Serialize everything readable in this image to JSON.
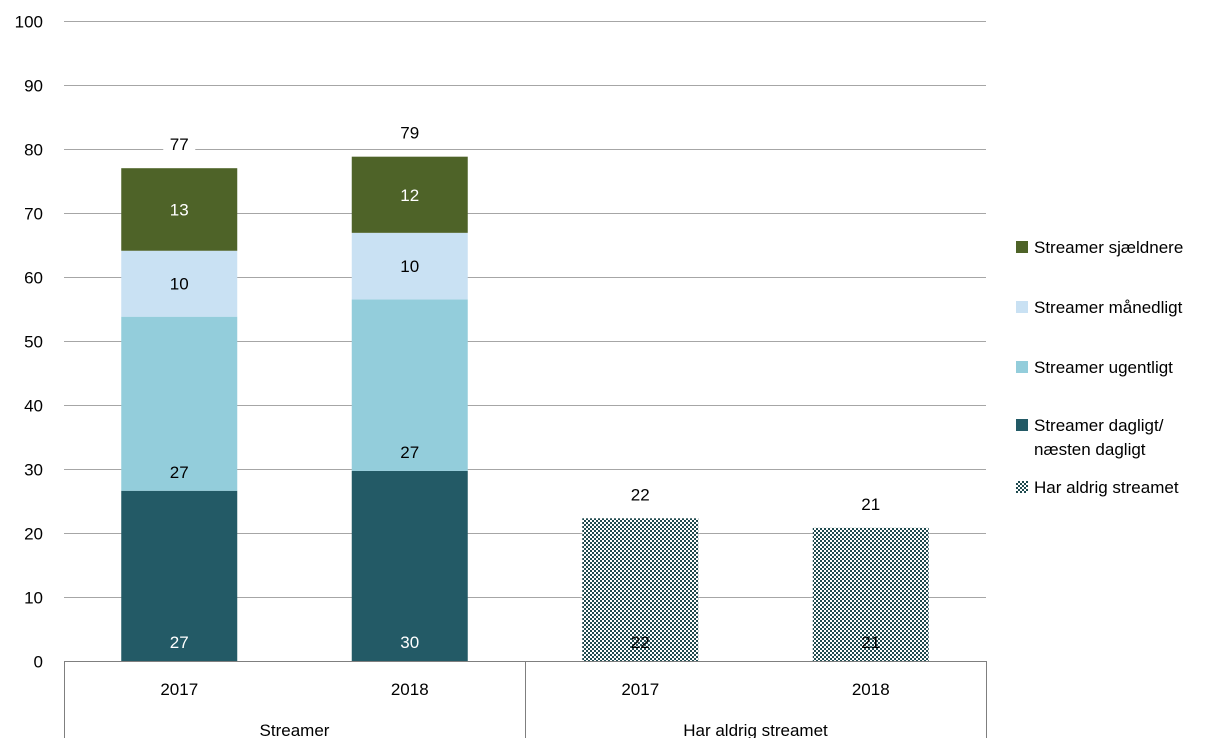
{
  "chart_data": {
    "type": "bar",
    "stacked": true,
    "y_axis": {
      "min": 0,
      "max": 100,
      "ticks": [
        "0",
        "10",
        "20",
        "30",
        "40",
        "50",
        "60",
        "70",
        "80",
        "90",
        "100"
      ]
    },
    "grid": true,
    "groups": [
      {
        "label": "Streamer",
        "categories": [
          "2017",
          "2018"
        ]
      },
      {
        "label": "Har aldrig streamet",
        "categories": [
          "2017",
          "2018"
        ]
      }
    ],
    "categories": [
      "2017",
      "2018",
      "2017",
      "2018"
    ],
    "series": [
      {
        "name": "Streamer dagligt/ næsten dagligt",
        "color": "#235A66",
        "values": [
          26.6,
          29.7,
          null,
          null
        ],
        "labels": [
          "27",
          "30",
          "",
          ""
        ],
        "label_color": "#ffffff"
      },
      {
        "name": "Streamer ugentligt",
        "color": "#93CDDB",
        "values": [
          27.2,
          26.8,
          null,
          null
        ],
        "labels": [
          "27",
          "27",
          "",
          ""
        ],
        "label_color": "#000000"
      },
      {
        "name": "Streamer månedligt",
        "color": "#C9E1F3",
        "values": [
          10.3,
          10.4,
          null,
          null
        ],
        "labels": [
          "10",
          "10",
          "",
          ""
        ],
        "label_color": "#000000"
      },
      {
        "name": "Streamer sjældnere",
        "color": "#4E6328",
        "values": [
          12.9,
          11.9,
          null,
          null
        ],
        "labels": [
          "13",
          "12",
          "",
          ""
        ],
        "label_color": "#ffffff"
      },
      {
        "name": "Har aldrig streamet",
        "color": "#1F4A4F",
        "pattern": "checker",
        "values": [
          null,
          null,
          22.3,
          20.8
        ],
        "labels": [
          "",
          "",
          "22",
          "21"
        ],
        "label_color": "#000000"
      }
    ],
    "totals": [
      "77",
      "79",
      "22",
      "21"
    ],
    "legend_position": "right",
    "legend": [
      {
        "name": "Streamer sjældnere",
        "color": "#4E6328"
      },
      {
        "name": "Streamer månedligt",
        "color": "#C9E1F3"
      },
      {
        "name": "Streamer ugentligt",
        "color": "#93CDDB"
      },
      {
        "name": "Streamer dagligt/ næsten dagligt",
        "color": "#235A66",
        "lines": [
          "Streamer dagligt/",
          "næsten dagligt"
        ]
      },
      {
        "name": "Har aldrig streamet",
        "color": "#1F4A4F",
        "pattern": "checker"
      }
    ]
  }
}
